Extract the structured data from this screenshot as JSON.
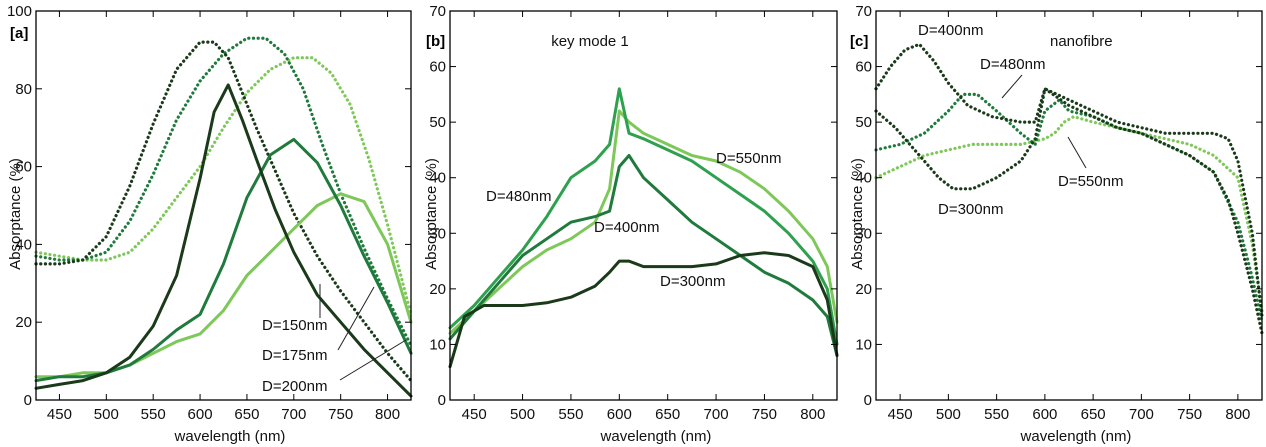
{
  "chart_data": [
    {
      "type": "line",
      "panel_label": "[a]",
      "title": "",
      "xlabel": "wavelength (nm)",
      "ylabel": "Absorptance (%)",
      "xlim": [
        425,
        825
      ],
      "ylim": [
        0,
        100
      ],
      "xticks": [
        450,
        500,
        550,
        600,
        650,
        700,
        750,
        800
      ],
      "yticks": [
        0,
        20,
        40,
        60,
        80,
        100
      ],
      "series": [
        {
          "color": "#1a3a1a",
          "style": "solid",
          "x": [
            425,
            450,
            475,
            500,
            525,
            550,
            575,
            600,
            615,
            630,
            645,
            660,
            680,
            700,
            725,
            750,
            775,
            800,
            825
          ],
          "y": [
            3,
            4,
            5,
            7,
            11,
            19,
            32,
            57,
            74,
            81,
            72,
            62,
            49,
            38,
            27,
            20,
            13,
            7,
            1
          ]
        },
        {
          "color": "#1f7a3c",
          "style": "solid",
          "x": [
            425,
            450,
            475,
            500,
            525,
            550,
            575,
            600,
            625,
            650,
            675,
            700,
            725,
            750,
            775,
            800,
            825
          ],
          "y": [
            5,
            6,
            6,
            7,
            9,
            13,
            18,
            22,
            35,
            52,
            63,
            67,
            61,
            50,
            37,
            25,
            12
          ]
        },
        {
          "color": "#7ec85a",
          "style": "solid",
          "x": [
            425,
            450,
            475,
            500,
            525,
            550,
            575,
            600,
            625,
            650,
            675,
            700,
            725,
            750,
            775,
            800,
            825
          ],
          "y": [
            6,
            6,
            7,
            7,
            9,
            12,
            15,
            17,
            23,
            32,
            38,
            44,
            50,
            53,
            51,
            40,
            20
          ]
        },
        {
          "color": "#1a3a1a",
          "style": "dotted",
          "x": [
            425,
            450,
            475,
            500,
            525,
            550,
            575,
            600,
            615,
            630,
            645,
            660,
            680,
            700,
            725,
            750,
            775,
            800,
            825
          ],
          "y": [
            35,
            35,
            36,
            42,
            55,
            71,
            85,
            92,
            92,
            88,
            79,
            70,
            59,
            48,
            37,
            28,
            20,
            12,
            5
          ]
        },
        {
          "color": "#1f7a3c",
          "style": "dotted",
          "x": [
            425,
            450,
            475,
            500,
            525,
            550,
            575,
            600,
            625,
            650,
            670,
            690,
            710,
            730,
            750,
            775,
            800,
            825
          ],
          "y": [
            37,
            36,
            36,
            38,
            46,
            58,
            72,
            82,
            89,
            93,
            93,
            89,
            80,
            66,
            53,
            39,
            26,
            14
          ]
        },
        {
          "color": "#7ec85a",
          "style": "dotted",
          "x": [
            425,
            450,
            475,
            500,
            525,
            550,
            575,
            600,
            625,
            650,
            675,
            700,
            720,
            740,
            760,
            780,
            800,
            825
          ],
          "y": [
            38,
            37,
            36,
            36,
            38,
            44,
            52,
            60,
            70,
            79,
            85,
            88,
            88,
            84,
            76,
            62,
            45,
            22
          ]
        }
      ],
      "annotations": [
        "D=150nm",
        "D=175nm",
        "D=200nm"
      ]
    },
    {
      "type": "line",
      "panel_label": "[b]",
      "title": "key mode 1",
      "xlabel": "wavelength (nm)",
      "ylabel": "Absorptance (%)",
      "xlim": [
        425,
        825
      ],
      "ylim": [
        0,
        70
      ],
      "xticks": [
        450,
        500,
        550,
        600,
        650,
        700,
        750,
        800
      ],
      "yticks": [
        0,
        10,
        20,
        30,
        40,
        50,
        60,
        70
      ],
      "series": [
        {
          "color": "#1a3a1a",
          "style": "solid",
          "x": [
            425,
            440,
            460,
            480,
            500,
            525,
            550,
            575,
            590,
            600,
            610,
            625,
            650,
            675,
            700,
            725,
            750,
            775,
            800,
            815,
            825
          ],
          "y": [
            6,
            15,
            17,
            17,
            17,
            17.5,
            18.5,
            20.5,
            23,
            25,
            25,
            24,
            24,
            24,
            24.5,
            26,
            26.5,
            26,
            24,
            18,
            8
          ]
        },
        {
          "color": "#1f7a3c",
          "style": "solid",
          "x": [
            425,
            450,
            475,
            500,
            525,
            550,
            575,
            590,
            600,
            610,
            625,
            650,
            675,
            700,
            725,
            750,
            775,
            800,
            815,
            825
          ],
          "y": [
            11,
            16,
            21,
            26,
            29,
            32,
            33,
            34,
            42,
            44,
            40,
            36,
            32,
            29,
            26,
            23,
            21,
            18,
            15,
            8
          ]
        },
        {
          "color": "#2ea04e",
          "style": "solid",
          "x": [
            425,
            450,
            475,
            500,
            525,
            550,
            575,
            590,
            600,
            610,
            625,
            650,
            675,
            700,
            725,
            750,
            775,
            800,
            815,
            825
          ],
          "y": [
            13,
            17,
            22,
            27,
            33,
            40,
            43,
            46,
            56,
            48,
            47,
            45,
            43,
            40,
            37,
            34,
            30,
            25,
            20,
            10
          ]
        },
        {
          "color": "#7ec85a",
          "style": "solid",
          "x": [
            425,
            450,
            475,
            500,
            525,
            550,
            575,
            590,
            600,
            610,
            625,
            650,
            675,
            700,
            725,
            750,
            775,
            800,
            815,
            825
          ],
          "y": [
            12,
            16,
            20,
            24,
            27,
            29,
            32,
            38,
            52,
            50,
            48,
            46,
            44,
            43,
            41,
            38,
            34,
            29,
            24,
            14
          ]
        }
      ],
      "annotations": [
        "D=550nm",
        "D=480nm",
        "D=400nm",
        "D=300nm"
      ]
    },
    {
      "type": "line",
      "panel_label": "[c]",
      "title": "nanofibre",
      "xlabel": "wavelength (nm)",
      "ylabel": "Absorptance (%)",
      "xlim": [
        425,
        825
      ],
      "ylim": [
        0,
        70
      ],
      "xticks": [
        450,
        500,
        550,
        600,
        650,
        700,
        750,
        800
      ],
      "yticks": [
        0,
        10,
        20,
        30,
        40,
        50,
        60,
        70
      ],
      "series": [
        {
          "color": "#1a3a1a",
          "style": "dotted",
          "x": [
            425,
            440,
            455,
            470,
            485,
            500,
            520,
            545,
            575,
            590,
            600,
            625,
            650,
            675,
            700,
            725,
            750,
            775,
            790,
            800,
            815,
            825
          ],
          "y": [
            56,
            60,
            63,
            64,
            61,
            57,
            53,
            51,
            50,
            50,
            56,
            54,
            52,
            50,
            49,
            48,
            48,
            48,
            47,
            43,
            30,
            15
          ]
        },
        {
          "color": "#1a3a1a",
          "style": "dotted",
          "x": [
            425,
            445,
            460,
            475,
            490,
            505,
            525,
            550,
            575,
            590,
            600,
            625,
            650,
            675,
            700,
            725,
            750,
            775,
            790,
            800,
            815,
            825
          ],
          "y": [
            52,
            49,
            46,
            43,
            40,
            38,
            38,
            40,
            43,
            47,
            56,
            53,
            51,
            49,
            48,
            46,
            44,
            41,
            36,
            30,
            20,
            12
          ]
        },
        {
          "color": "#1f7a3c",
          "style": "dotted",
          "x": [
            425,
            450,
            475,
            500,
            515,
            530,
            550,
            575,
            590,
            600,
            615,
            625,
            650,
            675,
            700,
            725,
            750,
            775,
            800,
            815,
            825
          ],
          "y": [
            45,
            46,
            48,
            52,
            55,
            55,
            52,
            48,
            46,
            52,
            54,
            52,
            51,
            49,
            48,
            46,
            44,
            41,
            32,
            22,
            14
          ]
        },
        {
          "color": "#7ec85a",
          "style": "dotted",
          "x": [
            425,
            450,
            475,
            500,
            525,
            550,
            575,
            600,
            610,
            620,
            630,
            650,
            675,
            700,
            725,
            750,
            775,
            800,
            815,
            825
          ],
          "y": [
            40,
            42,
            44,
            45,
            46,
            46,
            46,
            47,
            48,
            50,
            51,
            50,
            49,
            48,
            47,
            46,
            44,
            40,
            28,
            16
          ]
        }
      ],
      "annotations": [
        "D=400nm",
        "D=480nm",
        "D=550nm",
        "D=300nm"
      ]
    }
  ]
}
